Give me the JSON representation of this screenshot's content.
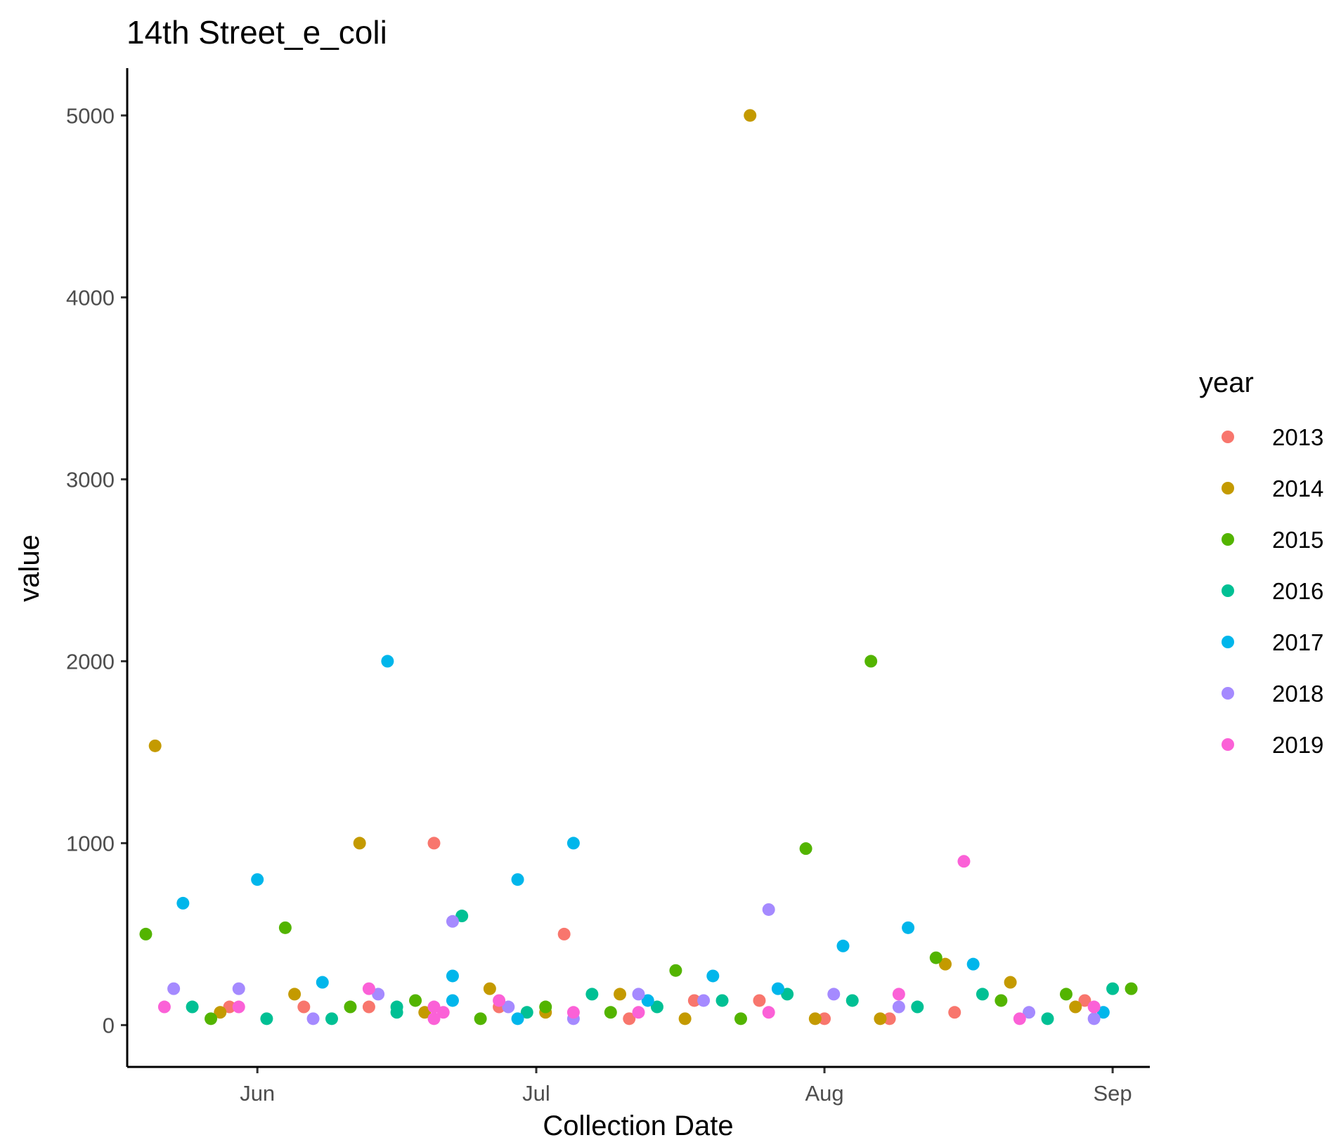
{
  "chart_data": {
    "type": "scatter",
    "title": "14th Street_e_coli",
    "xlabel": "Collection Date",
    "ylabel": "value",
    "x_axis": "date",
    "xlim": [
      "2000-05-18",
      "2000-09-05"
    ],
    "ylim": [
      -230,
      5260
    ],
    "x_ticks": [
      {
        "label": "Jun",
        "date": "2000-06-01"
      },
      {
        "label": "Jul",
        "date": "2000-07-01"
      },
      {
        "label": "Aug",
        "date": "2000-08-01"
      },
      {
        "label": "Sep",
        "date": "2000-09-01"
      }
    ],
    "y_ticks": [
      0,
      1000,
      2000,
      3000,
      4000,
      5000
    ],
    "grid": false,
    "legend_title": "year",
    "legend_position": "right",
    "series": [
      {
        "name": "2013",
        "color": "#F8766D",
        "points": [
          {
            "x": "2000-05-29",
            "y": 100
          },
          {
            "x": "2000-06-06",
            "y": 100
          },
          {
            "x": "2000-06-13",
            "y": 100
          },
          {
            "x": "2000-06-20",
            "y": 1000
          },
          {
            "x": "2000-06-27",
            "y": 100
          },
          {
            "x": "2000-07-04",
            "y": 500
          },
          {
            "x": "2000-07-11",
            "y": 35
          },
          {
            "x": "2000-07-18",
            "y": 135
          },
          {
            "x": "2000-07-25",
            "y": 135
          },
          {
            "x": "2000-08-01",
            "y": 35
          },
          {
            "x": "2000-08-08",
            "y": 35
          },
          {
            "x": "2000-08-15",
            "y": 70
          },
          {
            "x": "2000-08-29",
            "y": 135
          }
        ]
      },
      {
        "name": "2014",
        "color": "#C49A00",
        "points": [
          {
            "x": "2000-05-21",
            "y": 1535
          },
          {
            "x": "2000-05-28",
            "y": 70
          },
          {
            "x": "2000-06-05",
            "y": 170
          },
          {
            "x": "2000-06-12",
            "y": 1000
          },
          {
            "x": "2000-06-19",
            "y": 70
          },
          {
            "x": "2000-06-26",
            "y": 200
          },
          {
            "x": "2000-07-02",
            "y": 70
          },
          {
            "x": "2000-07-10",
            "y": 170
          },
          {
            "x": "2000-07-17",
            "y": 35
          },
          {
            "x": "2000-07-24",
            "y": 5000
          },
          {
            "x": "2000-07-31",
            "y": 35
          },
          {
            "x": "2000-08-07",
            "y": 35
          },
          {
            "x": "2000-08-14",
            "y": 335
          },
          {
            "x": "2000-08-21",
            "y": 235
          },
          {
            "x": "2000-08-28",
            "y": 100
          }
        ]
      },
      {
        "name": "2015",
        "color": "#53B400",
        "points": [
          {
            "x": "2000-05-20",
            "y": 500
          },
          {
            "x": "2000-05-27",
            "y": 35
          },
          {
            "x": "2000-06-04",
            "y": 535
          },
          {
            "x": "2000-06-11",
            "y": 100
          },
          {
            "x": "2000-06-18",
            "y": 135
          },
          {
            "x": "2000-06-25",
            "y": 35
          },
          {
            "x": "2000-07-02",
            "y": 100
          },
          {
            "x": "2000-07-09",
            "y": 70
          },
          {
            "x": "2000-07-16",
            "y": 300
          },
          {
            "x": "2000-07-23",
            "y": 35
          },
          {
            "x": "2000-07-30",
            "y": 970
          },
          {
            "x": "2000-08-06",
            "y": 2000
          },
          {
            "x": "2000-08-13",
            "y": 370
          },
          {
            "x": "2000-08-20",
            "y": 135
          },
          {
            "x": "2000-08-27",
            "y": 170
          },
          {
            "x": "2000-09-03",
            "y": 200
          }
        ]
      },
      {
        "name": "2016",
        "color": "#00C094",
        "points": [
          {
            "x": "2000-05-25",
            "y": 100
          },
          {
            "x": "2000-06-02",
            "y": 35
          },
          {
            "x": "2000-06-09",
            "y": 35
          },
          {
            "x": "2000-06-16",
            "y": 100
          },
          {
            "x": "2000-06-16",
            "y": 70
          },
          {
            "x": "2000-06-23",
            "y": 600
          },
          {
            "x": "2000-06-30",
            "y": 70
          },
          {
            "x": "2000-07-07",
            "y": 170
          },
          {
            "x": "2000-07-14",
            "y": 100
          },
          {
            "x": "2000-07-21",
            "y": 135
          },
          {
            "x": "2000-07-28",
            "y": 170
          },
          {
            "x": "2000-08-04",
            "y": 135
          },
          {
            "x": "2000-08-11",
            "y": 100
          },
          {
            "x": "2000-08-18",
            "y": 170
          },
          {
            "x": "2000-08-25",
            "y": 35
          },
          {
            "x": "2000-09-01",
            "y": 200
          }
        ]
      },
      {
        "name": "2017",
        "color": "#00B6EB",
        "points": [
          {
            "x": "2000-05-24",
            "y": 670
          },
          {
            "x": "2000-06-01",
            "y": 800
          },
          {
            "x": "2000-06-08",
            "y": 235
          },
          {
            "x": "2000-06-15",
            "y": 2000
          },
          {
            "x": "2000-06-22",
            "y": 270
          },
          {
            "x": "2000-06-22",
            "y": 135
          },
          {
            "x": "2000-06-29",
            "y": 800
          },
          {
            "x": "2000-06-29",
            "y": 35
          },
          {
            "x": "2000-07-05",
            "y": 1000
          },
          {
            "x": "2000-07-13",
            "y": 135
          },
          {
            "x": "2000-07-20",
            "y": 270
          },
          {
            "x": "2000-07-27",
            "y": 200
          },
          {
            "x": "2000-08-03",
            "y": 435
          },
          {
            "x": "2000-08-10",
            "y": 535
          },
          {
            "x": "2000-08-17",
            "y": 335
          },
          {
            "x": "2000-08-31",
            "y": 70
          }
        ]
      },
      {
        "name": "2018",
        "color": "#A58AFF",
        "points": [
          {
            "x": "2000-05-23",
            "y": 200
          },
          {
            "x": "2000-05-30",
            "y": 200
          },
          {
            "x": "2000-06-07",
            "y": 35
          },
          {
            "x": "2000-06-14",
            "y": 170
          },
          {
            "x": "2000-06-22",
            "y": 570
          },
          {
            "x": "2000-06-28",
            "y": 100
          },
          {
            "x": "2000-07-05",
            "y": 35
          },
          {
            "x": "2000-07-12",
            "y": 170
          },
          {
            "x": "2000-07-19",
            "y": 135
          },
          {
            "x": "2000-07-26",
            "y": 635
          },
          {
            "x": "2000-08-02",
            "y": 170
          },
          {
            "x": "2000-08-09",
            "y": 100
          },
          {
            "x": "2000-08-23",
            "y": 70
          },
          {
            "x": "2000-08-30",
            "y": 35
          }
        ]
      },
      {
        "name": "2019",
        "color": "#FB61D7",
        "points": [
          {
            "x": "2000-05-22",
            "y": 100
          },
          {
            "x": "2000-05-30",
            "y": 100
          },
          {
            "x": "2000-06-13",
            "y": 200
          },
          {
            "x": "2000-06-20",
            "y": 100
          },
          {
            "x": "2000-06-20",
            "y": 35
          },
          {
            "x": "2000-06-21",
            "y": 70
          },
          {
            "x": "2000-06-27",
            "y": 135
          },
          {
            "x": "2000-07-05",
            "y": 70
          },
          {
            "x": "2000-07-12",
            "y": 70
          },
          {
            "x": "2000-07-26",
            "y": 70
          },
          {
            "x": "2000-08-09",
            "y": 170
          },
          {
            "x": "2000-08-16",
            "y": 900
          },
          {
            "x": "2000-08-22",
            "y": 35
          },
          {
            "x": "2000-08-30",
            "y": 100
          }
        ]
      }
    ]
  }
}
